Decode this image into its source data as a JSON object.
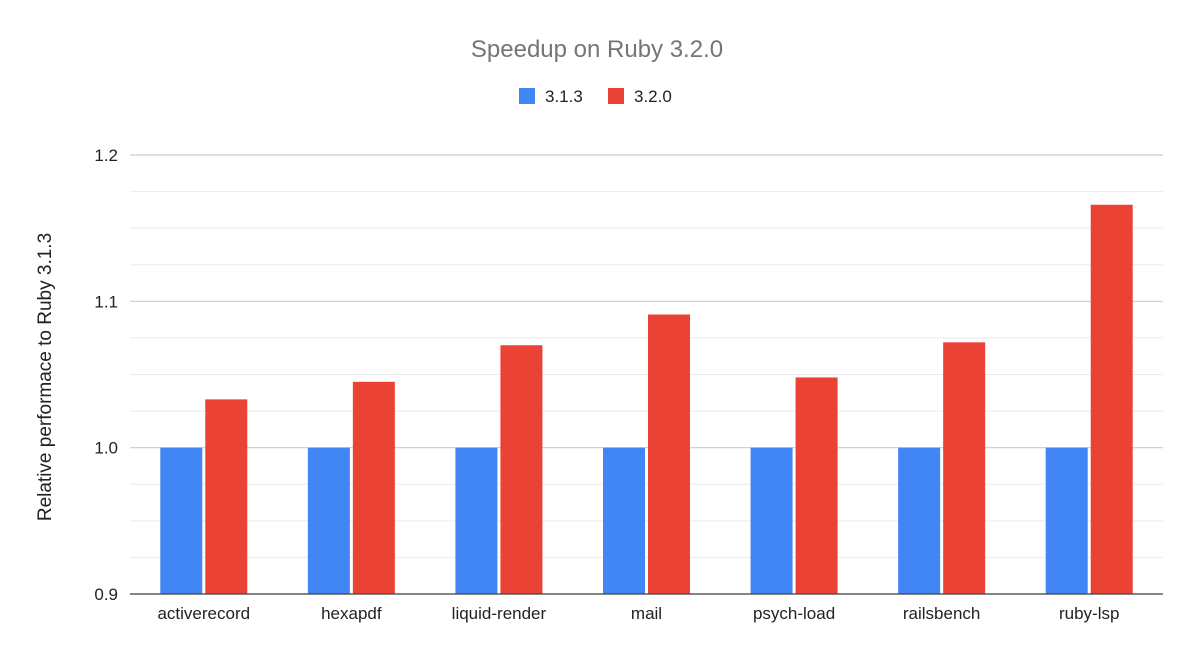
{
  "chart_data": {
    "type": "bar",
    "title": "Speedup on Ruby 3.2.0",
    "xlabel": "",
    "ylabel": "Relative performace to Ruby 3.1.3",
    "categories": [
      "activerecord",
      "hexapdf",
      "liquid-render",
      "mail",
      "psych-load",
      "railsbench",
      "ruby-lsp"
    ],
    "series": [
      {
        "name": "3.1.3",
        "color": "#4285f4",
        "values": [
          1.0,
          1.0,
          1.0,
          1.0,
          1.0,
          1.0,
          1.0
        ]
      },
      {
        "name": "3.2.0",
        "color": "#ea4335",
        "values": [
          1.033,
          1.045,
          1.07,
          1.091,
          1.048,
          1.072,
          1.166
        ]
      }
    ],
    "ylim": [
      0.9,
      1.2
    ],
    "yticks": [
      "0.9",
      "1.0",
      "1.1",
      "1.2"
    ],
    "grid": true,
    "legend": "top-center"
  }
}
